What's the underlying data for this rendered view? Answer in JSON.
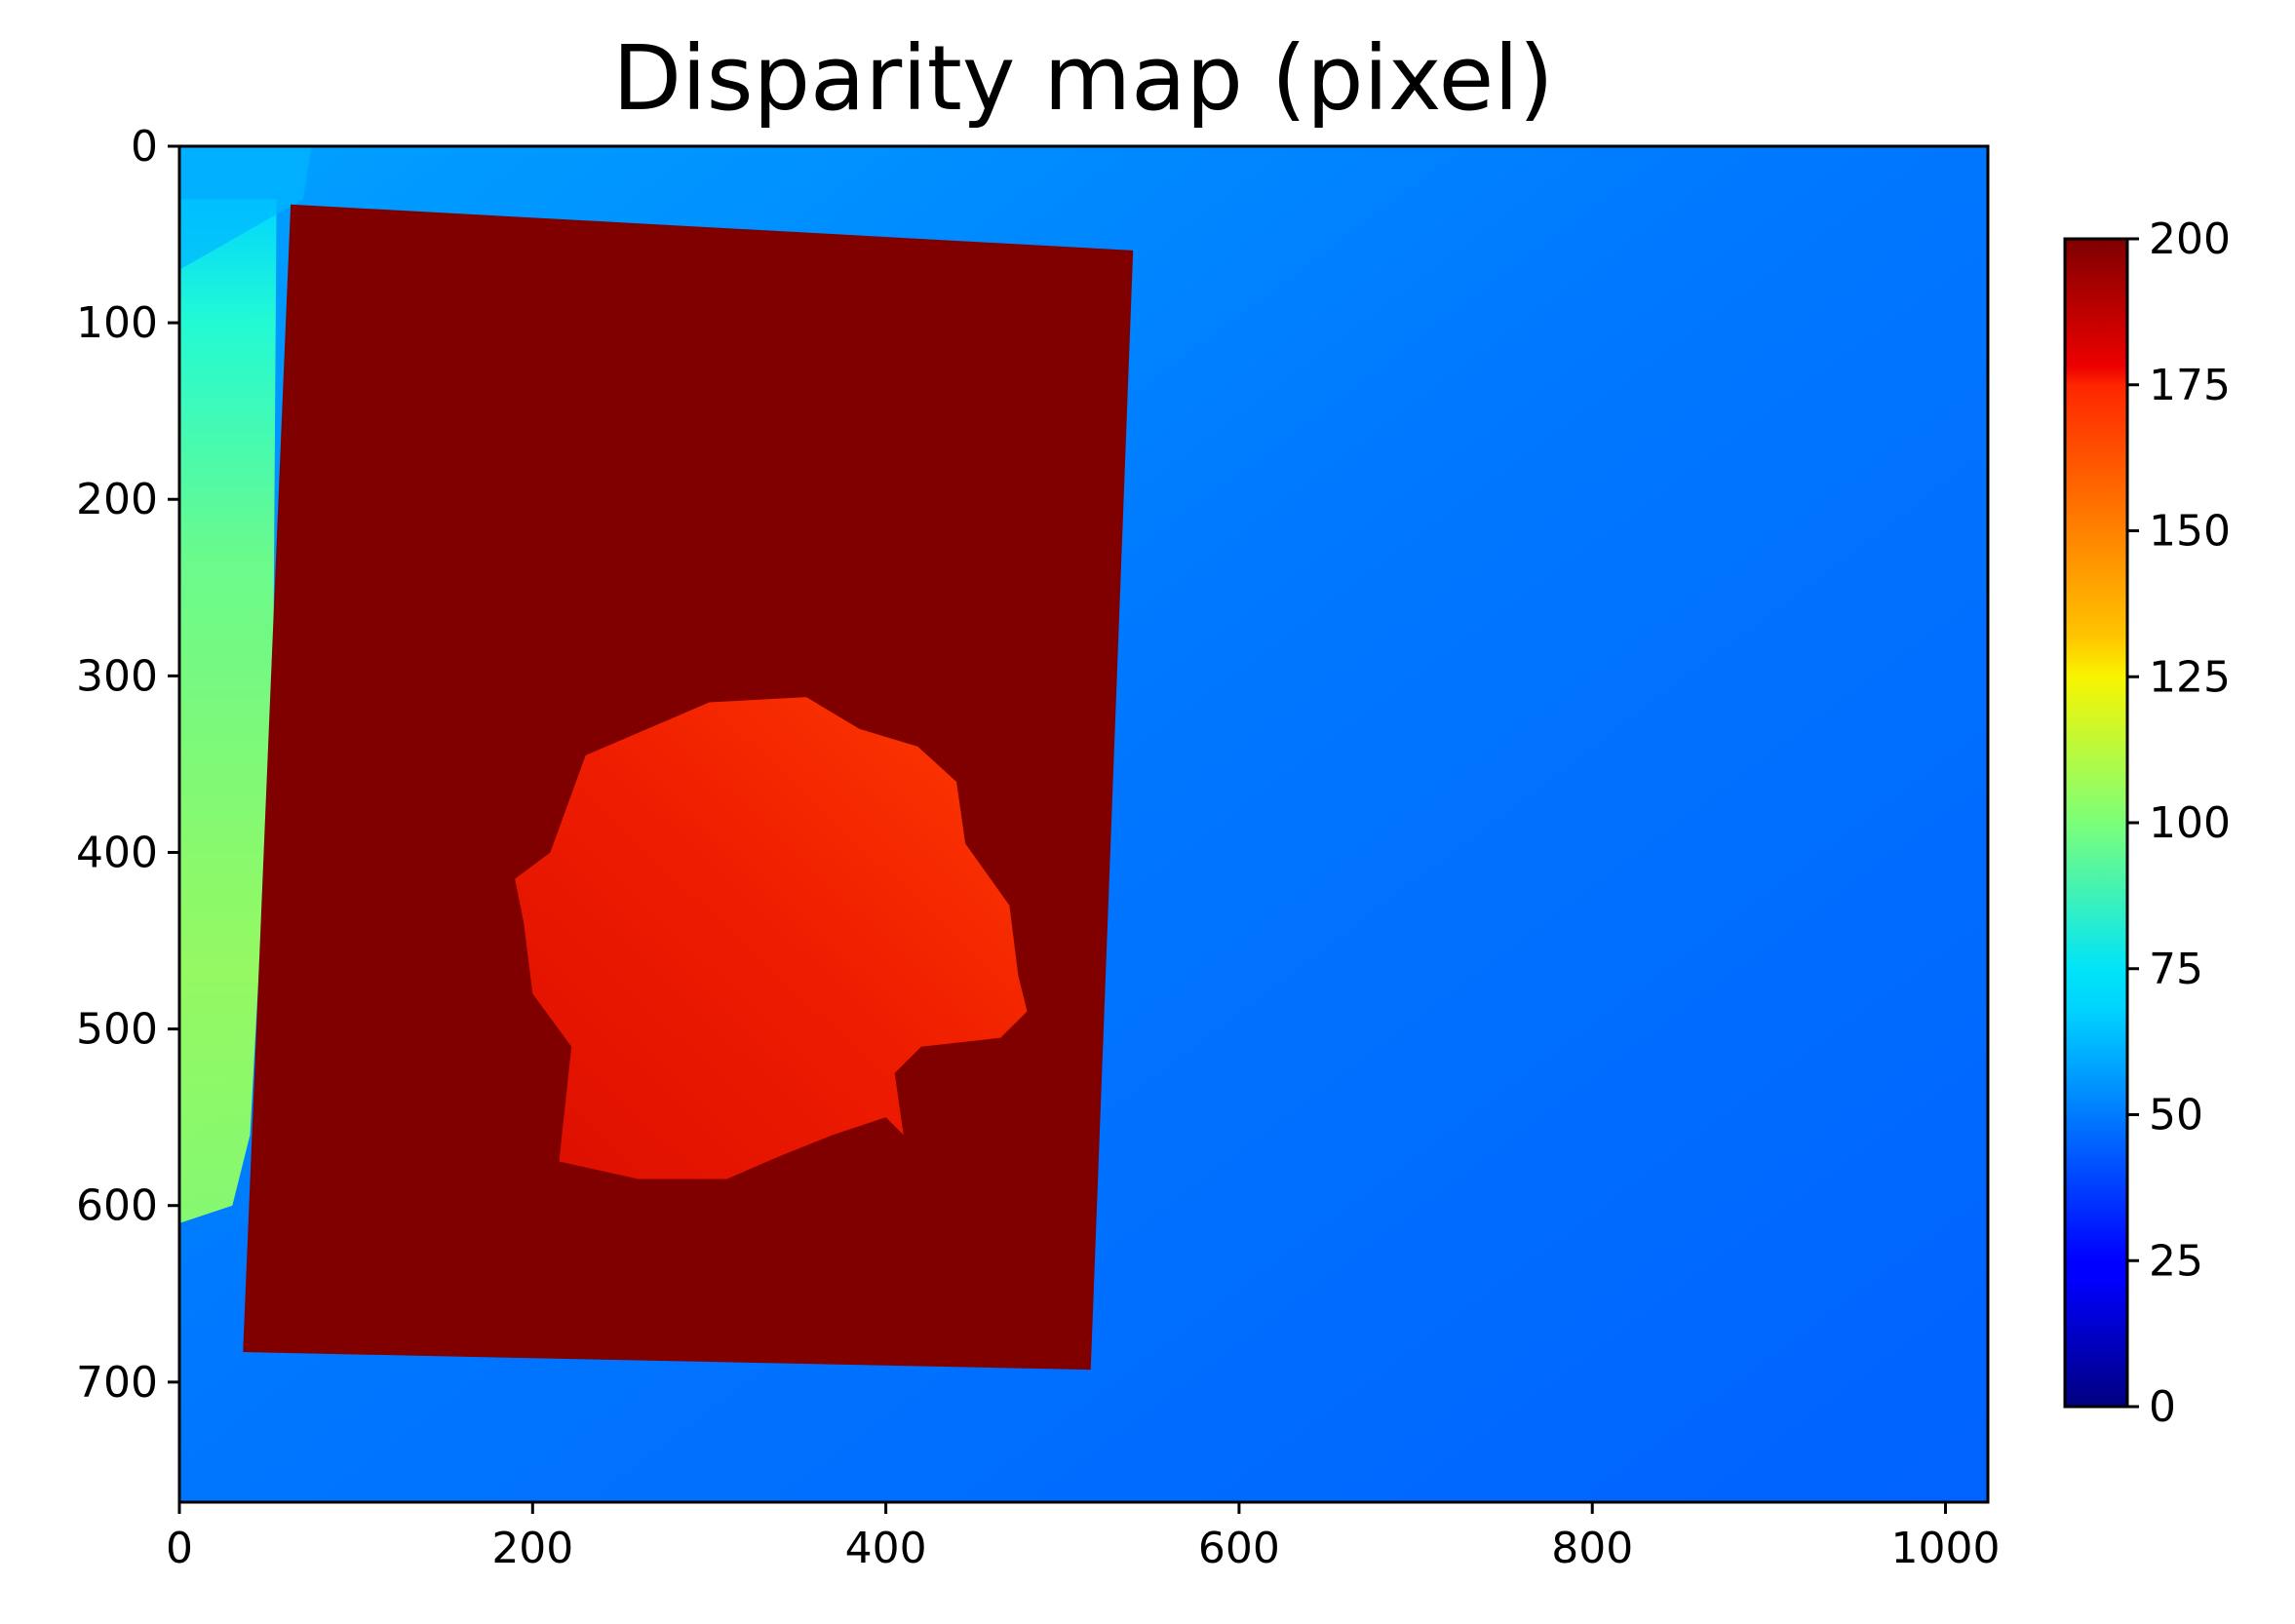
{
  "chart_data": {
    "type": "heatmap",
    "title": "Disparity map (pixel)",
    "xlabel": "",
    "ylabel": "",
    "colormap": "jet",
    "colors": {
      "background_region": "#0070ff",
      "left_band": "#9cff5a",
      "rectangle": "#800000",
      "blob": "#ee1a00"
    },
    "xlim": [
      0,
      1024
    ],
    "ylim": [
      768,
      0
    ],
    "x_ticks": [
      "0",
      "200",
      "400",
      "600",
      "800",
      "1000"
    ],
    "y_ticks": [
      "0",
      "100",
      "200",
      "300",
      "400",
      "500",
      "600",
      "700"
    ],
    "colorbar": {
      "range": [
        0,
        200
      ],
      "ticks": [
        "0",
        "25",
        "50",
        "75",
        "100",
        "125",
        "150",
        "175",
        "200"
      ]
    },
    "regions": [
      {
        "name": "background",
        "value_range": [
          45,
          60
        ],
        "description_value": "approx. 50"
      },
      {
        "name": "left-band",
        "x_range": [
          0,
          55
        ],
        "y_range": [
          100,
          560
        ],
        "value_range": [
          80,
          105
        ]
      },
      {
        "name": "rectangle",
        "corners": [
          [
            63,
            33
          ],
          [
            540,
            59
          ],
          [
            516,
            693
          ],
          [
            36,
            683
          ]
        ],
        "value": 200
      },
      {
        "name": "blob",
        "approx_x_range": [
          190,
          480
        ],
        "approx_y_range": [
          315,
          590
        ],
        "value_range": [
          170,
          185
        ]
      }
    ]
  }
}
